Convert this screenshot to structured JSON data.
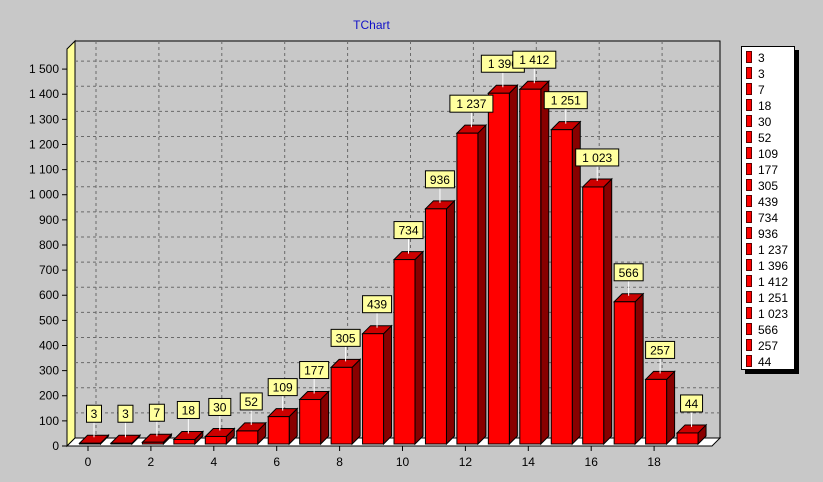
{
  "chart_data": {
    "type": "bar",
    "title": "TChart",
    "xlabel": "",
    "ylabel": "",
    "x": [
      0,
      1,
      2,
      3,
      4,
      5,
      6,
      7,
      8,
      9,
      10,
      11,
      12,
      13,
      14,
      15,
      16,
      17,
      18,
      19
    ],
    "values": [
      3,
      3,
      7,
      18,
      30,
      52,
      109,
      177,
      305,
      439,
      734,
      936,
      1237,
      1396,
      1412,
      1251,
      1023,
      566,
      257,
      44
    ],
    "data_labels": [
      "3",
      "3",
      "7",
      "18",
      "30",
      "52",
      "109",
      "177",
      "305",
      "439",
      "734",
      "936",
      "1 237",
      "1 396",
      "1 412",
      "1 251",
      "1 023",
      "566",
      "257",
      "44"
    ],
    "x_ticks": [
      "0",
      "2",
      "4",
      "6",
      "8",
      "10",
      "12",
      "14",
      "16",
      "18"
    ],
    "y_ticks": [
      "0",
      "100",
      "200",
      "300",
      "400",
      "500",
      "600",
      "700",
      "800",
      "900",
      "1 000",
      "1 100",
      "1 200",
      "1 300",
      "1 400",
      "1 500"
    ],
    "ylim": [
      0,
      1580
    ],
    "grid": true,
    "legend_position": "right",
    "colors": {
      "bar_front": "#ff0000",
      "bar_side": "#880000",
      "bar_top": "#cc0000",
      "label_bg": "#ffff9e",
      "wall": "#ffff99"
    }
  }
}
